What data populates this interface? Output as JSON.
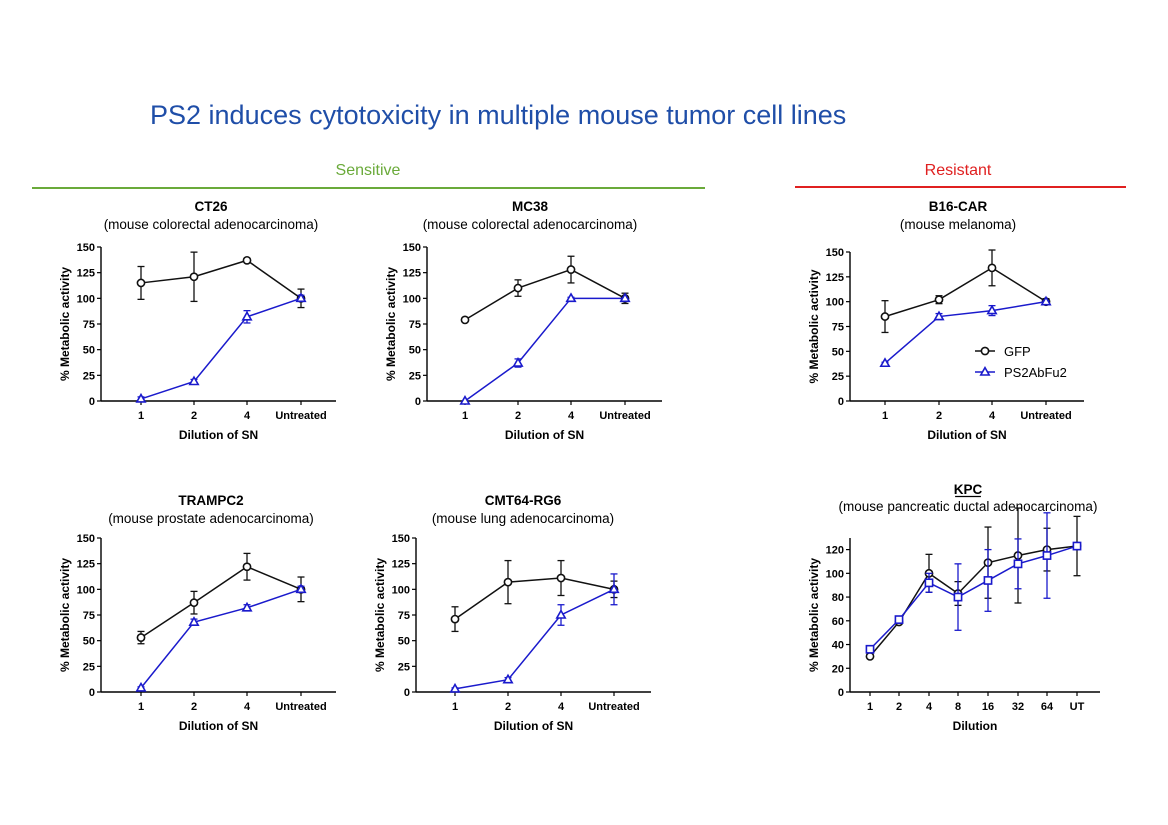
{
  "slide_title": "PS2 induces cytotoxicity in multiple mouse tumor cell lines",
  "sections": {
    "sensitive": {
      "label": "Sensitive",
      "color": "#6aaa3a"
    },
    "resistant": {
      "label": "Resistant",
      "color": "#e02020"
    }
  },
  "colors": {
    "gfp": "#111111",
    "ps2": "#1a1acc"
  },
  "legend": {
    "gfp": "GFP",
    "ps2": "PS2AbFu2"
  },
  "chart_data": [
    {
      "id": "ct26",
      "type": "line",
      "title": "CT26",
      "subtitle": "(mouse colorectal adenocarcinoma)",
      "xlabel": "Dilution of SN",
      "ylabel": "% Metabolic activity",
      "categories": [
        "1",
        "2",
        "4",
        "Untreated"
      ],
      "ylim": [
        0,
        150
      ],
      "yticks": [
        0,
        25,
        50,
        75,
        100,
        125,
        150
      ],
      "series": [
        {
          "name": "GFP",
          "marker": "circle",
          "values": [
            115,
            121,
            137,
            100
          ],
          "errors": [
            16,
            24,
            1,
            9
          ]
        },
        {
          "name": "PS2AbFu2",
          "marker": "triangle",
          "values": [
            2,
            19,
            82,
            100
          ],
          "errors": [
            2,
            2,
            6,
            3
          ]
        }
      ]
    },
    {
      "id": "mc38",
      "type": "line",
      "title": "MC38",
      "subtitle": "(mouse colorectal adenocarcinoma)",
      "xlabel": "Dilution of SN",
      "ylabel": "% Metabolic activity",
      "categories": [
        "1",
        "2",
        "4",
        "Untreated"
      ],
      "ylim": [
        0,
        150
      ],
      "yticks": [
        0,
        25,
        50,
        75,
        100,
        125,
        150
      ],
      "series": [
        {
          "name": "GFP",
          "marker": "circle",
          "values": [
            79,
            110,
            128,
            100
          ],
          "errors": [
            0,
            8,
            13,
            5
          ]
        },
        {
          "name": "PS2AbFu2",
          "marker": "triangle",
          "values": [
            0,
            37,
            100,
            100
          ],
          "errors": [
            0,
            4,
            1,
            0
          ]
        }
      ]
    },
    {
      "id": "b16car",
      "type": "line",
      "title": "B16-CAR",
      "subtitle": "(mouse melanoma)",
      "xlabel": "Dilution of SN",
      "ylabel": "% Metabolic activity",
      "categories": [
        "1",
        "2",
        "4",
        "Untreated"
      ],
      "ylim": [
        0,
        150
      ],
      "yticks": [
        0,
        25,
        50,
        75,
        100,
        125,
        150
      ],
      "series": [
        {
          "name": "GFP",
          "marker": "circle",
          "values": [
            85,
            102,
            134,
            100
          ],
          "errors": [
            16,
            4,
            18,
            3
          ]
        },
        {
          "name": "PS2AbFu2",
          "marker": "triangle",
          "values": [
            38,
            85,
            91,
            100
          ],
          "errors": [
            1,
            3,
            5,
            1
          ]
        }
      ]
    },
    {
      "id": "trampc2",
      "type": "line",
      "title": "TRAMPC2",
      "subtitle": "(mouse prostate adenocarcinoma)",
      "xlabel": "Dilution of SN",
      "ylabel": "% Metabolic activity",
      "categories": [
        "1",
        "2",
        "4",
        "Untreated"
      ],
      "ylim": [
        0,
        150
      ],
      "yticks": [
        0,
        25,
        50,
        75,
        100,
        125,
        150
      ],
      "series": [
        {
          "name": "GFP",
          "marker": "circle",
          "values": [
            53,
            87,
            122,
            100
          ],
          "errors": [
            6,
            11,
            13,
            12
          ]
        },
        {
          "name": "PS2AbFu2",
          "marker": "triangle",
          "values": [
            4,
            68,
            82,
            100
          ],
          "errors": [
            1,
            3,
            3,
            3
          ]
        }
      ]
    },
    {
      "id": "cmt64",
      "type": "line",
      "title": "CMT64-RG6",
      "subtitle": "(mouse lung adenocarcinoma)",
      "xlabel": "Dilution of SN",
      "ylabel": "% Metabolic activity",
      "categories": [
        "1",
        "2",
        "4",
        "Untreated"
      ],
      "ylim": [
        0,
        150
      ],
      "yticks": [
        0,
        25,
        50,
        75,
        100,
        125,
        150
      ],
      "series": [
        {
          "name": "GFP",
          "marker": "circle",
          "values": [
            71,
            107,
            111,
            100
          ],
          "errors": [
            12,
            21,
            17,
            8
          ]
        },
        {
          "name": "PS2AbFu2",
          "marker": "triangle",
          "values": [
            3,
            12,
            75,
            100
          ],
          "errors": [
            1,
            2,
            10,
            15
          ]
        }
      ]
    },
    {
      "id": "kpc",
      "type": "line",
      "title": "KPC",
      "subtitle": "(mouse pancreatic ductal adenocarcinoma)",
      "xlabel": "Dilution",
      "ylabel": "% Metabolic activity",
      "categories": [
        "1",
        "2",
        "4",
        "8",
        "16",
        "32",
        "64",
        "UT"
      ],
      "ylim": [
        0,
        130
      ],
      "yticks": [
        0,
        20,
        40,
        60,
        80,
        100,
        120
      ],
      "series": [
        {
          "name": "GFP",
          "marker": "circle",
          "values": [
            30,
            59,
            100,
            83,
            109,
            115,
            120,
            123
          ],
          "errors": [
            1,
            2,
            16,
            10,
            30,
            40,
            18,
            25
          ]
        },
        {
          "name": "PS2AbFu2",
          "marker": "square",
          "values": [
            36,
            61,
            92,
            80,
            94,
            108,
            115,
            123
          ],
          "errors": [
            2,
            2,
            8,
            28,
            26,
            21,
            36,
            2
          ]
        }
      ]
    }
  ]
}
